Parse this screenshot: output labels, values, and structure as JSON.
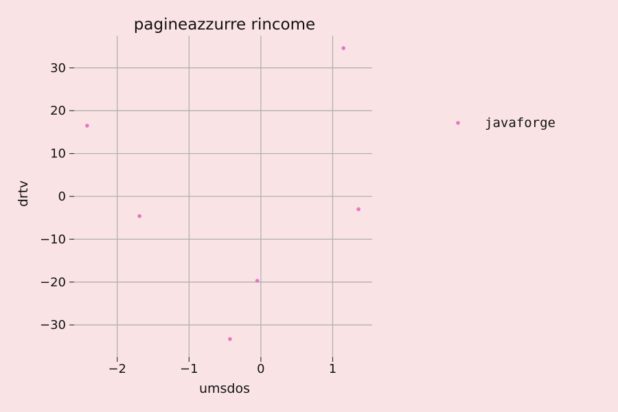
{
  "chart_data": {
    "type": "scatter",
    "title": "pagineazzurre rincome",
    "xlabel": "umsdos",
    "ylabel": "drtv",
    "xlim": [
      -2.6,
      1.55
    ],
    "ylim": [
      -37.5,
      37.5
    ],
    "x_ticks": [
      -2,
      -1,
      0,
      1
    ],
    "y_ticks": [
      -30,
      -20,
      -10,
      0,
      10,
      20,
      30
    ],
    "x_tick_labels": [
      "−2",
      "−1",
      "0",
      "1"
    ],
    "y_tick_labels": [
      "−30",
      "−20",
      "−10",
      "0",
      "10",
      "20",
      "30"
    ],
    "grid": true,
    "legend_position": "right",
    "series": [
      {
        "name": "javaforge",
        "color": "#e377c2",
        "points": [
          {
            "x": -2.42,
            "y": 16.5
          },
          {
            "x": -1.69,
            "y": -4.6
          },
          {
            "x": -0.43,
            "y": -33.3
          },
          {
            "x": -0.05,
            "y": -19.7
          },
          {
            "x": 1.15,
            "y": 34.6
          },
          {
            "x": 1.36,
            "y": -3.0
          }
        ]
      }
    ]
  }
}
